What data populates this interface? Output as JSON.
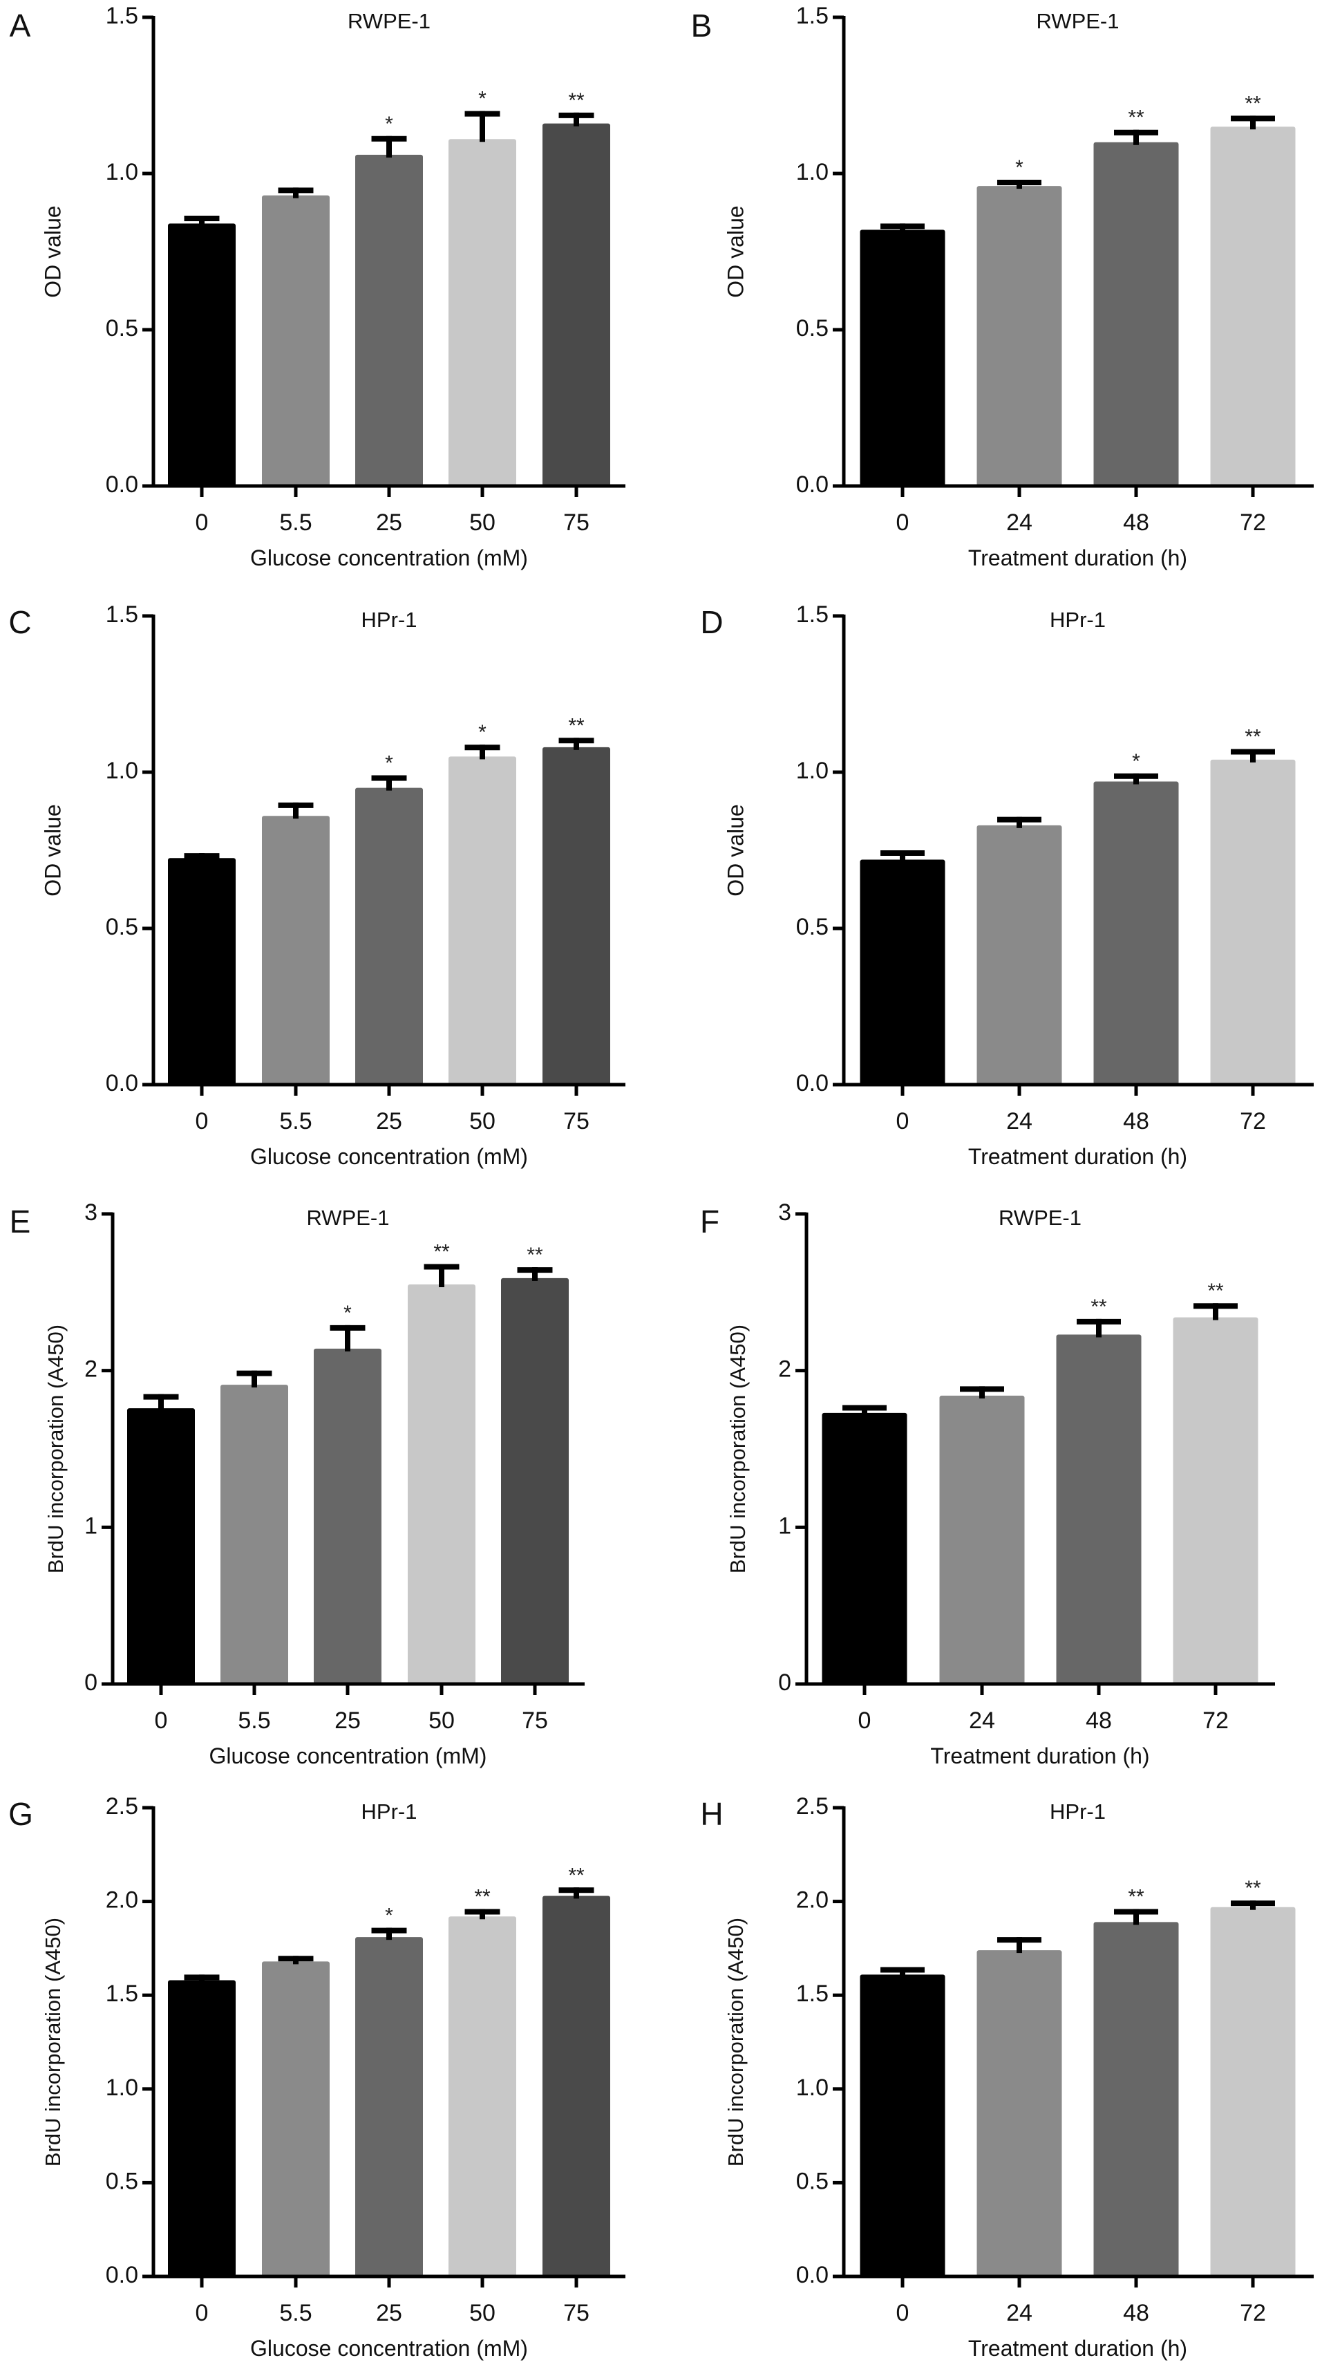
{
  "colors": {
    "bars": [
      "#000000",
      "#8a8a8a",
      "#676767",
      "#c8c8c8",
      "#4a4a4a"
    ],
    "axis": "#000000",
    "error_bar": "#000000"
  },
  "chart_data": [
    {
      "panel": "A",
      "type": "bar",
      "title": "RWPE-1",
      "xlabel": "Glucose concentration (mM)",
      "ylabel": "OD value",
      "categories": [
        "0",
        "5.5",
        "25",
        "50",
        "75"
      ],
      "values": [
        0.84,
        0.93,
        1.06,
        1.11,
        1.16
      ],
      "errors": [
        0.025,
        0.025,
        0.06,
        0.09,
        0.035
      ],
      "significance": [
        "",
        "",
        "*",
        "*",
        "**"
      ],
      "ylim": [
        0,
        1.5
      ],
      "yticks": [
        0,
        0.5,
        1.0,
        1.5
      ],
      "ytick_labels": [
        "0.0",
        "0.5",
        "1.0",
        "1.5"
      ],
      "grid": false
    },
    {
      "panel": "B",
      "type": "bar",
      "title": "RWPE-1",
      "xlabel": "Treatment duration (h)",
      "ylabel": "OD value",
      "categories": [
        "0",
        "24",
        "48",
        "72"
      ],
      "values": [
        0.82,
        0.96,
        1.1,
        1.15
      ],
      "errors": [
        0.02,
        0.02,
        0.04,
        0.035
      ],
      "significance": [
        "",
        "*",
        "**",
        "**"
      ],
      "ylim": [
        0,
        1.5
      ],
      "yticks": [
        0,
        0.5,
        1.0,
        1.5
      ],
      "ytick_labels": [
        "0.0",
        "0.5",
        "1.0",
        "1.5"
      ],
      "grid": false
    },
    {
      "panel": "C",
      "type": "bar",
      "title": "HPr-1",
      "xlabel": "Glucose concentration (mM)",
      "ylabel": "OD value",
      "categories": [
        "0",
        "5.5",
        "25",
        "50",
        "75"
      ],
      "values": [
        0.725,
        0.86,
        0.95,
        1.05,
        1.08
      ],
      "errors": [
        0.016,
        0.043,
        0.04,
        0.038,
        0.03
      ],
      "significance": [
        "",
        "",
        "*",
        "*",
        "**"
      ],
      "ylim": [
        0,
        1.5
      ],
      "yticks": [
        0,
        0.5,
        1.0,
        1.5
      ],
      "ytick_labels": [
        "0.0",
        "0.5",
        "1.0",
        "1.5"
      ],
      "grid": false
    },
    {
      "panel": "D",
      "type": "bar",
      "title": "HPr-1",
      "xlabel": "Treatment duration (h)",
      "ylabel": "OD value",
      "categories": [
        "0",
        "24",
        "48",
        "72"
      ],
      "values": [
        0.72,
        0.83,
        0.97,
        1.04
      ],
      "errors": [
        0.03,
        0.027,
        0.026,
        0.034
      ],
      "significance": [
        "",
        "",
        "*",
        "**"
      ],
      "ylim": [
        0,
        1.5
      ],
      "yticks": [
        0,
        0.5,
        1.0,
        1.5
      ],
      "ytick_labels": [
        "0.0",
        "0.5",
        "1.0",
        "1.5"
      ],
      "grid": false
    },
    {
      "panel": "E",
      "type": "bar",
      "title": "RWPE-1",
      "xlabel": "Glucose concentration (mM)",
      "ylabel": "BrdU incorporation (A450)",
      "categories": [
        "0",
        "5.5",
        "25",
        "50",
        "75"
      ],
      "values": [
        1.76,
        1.91,
        2.14,
        2.55,
        2.59
      ],
      "errors": [
        0.09,
        0.09,
        0.15,
        0.13,
        0.07
      ],
      "significance": [
        "",
        "",
        "*",
        "**",
        "**"
      ],
      "ylim": [
        0,
        3
      ],
      "yticks": [
        0,
        1,
        2,
        3
      ],
      "ytick_labels": [
        "0",
        "1",
        "2",
        "3"
      ],
      "grid": false
    },
    {
      "panel": "F",
      "type": "bar",
      "title": "RWPE-1",
      "xlabel": "Treatment duration (h)",
      "ylabel": "BrdU incorporation (A450)",
      "categories": [
        "0",
        "24",
        "48",
        "72"
      ],
      "values": [
        1.73,
        1.84,
        2.23,
        2.34
      ],
      "errors": [
        0.05,
        0.06,
        0.1,
        0.09
      ],
      "significance": [
        "",
        "",
        "**",
        "**"
      ],
      "ylim": [
        0,
        3
      ],
      "yticks": [
        0,
        1,
        2,
        3
      ],
      "ytick_labels": [
        "0",
        "1",
        "2",
        "3"
      ],
      "grid": false
    },
    {
      "panel": "G",
      "type": "bar",
      "title": "HPr-1",
      "xlabel": "Glucose concentration (mM)",
      "ylabel": "BrdU incorporation (A450)",
      "categories": [
        "0",
        "5.5",
        "25",
        "50",
        "75"
      ],
      "values": [
        1.58,
        1.68,
        1.81,
        1.92,
        2.03
      ],
      "errors": [
        0.03,
        0.03,
        0.05,
        0.04,
        0.045
      ],
      "significance": [
        "",
        "",
        "*",
        "**",
        "**"
      ],
      "ylim": [
        0,
        2.5
      ],
      "yticks": [
        0,
        0.5,
        1.0,
        1.5,
        2.0,
        2.5
      ],
      "ytick_labels": [
        "0.0",
        "0.5",
        "1.0",
        "1.5",
        "2.0",
        "2.5"
      ],
      "grid": false
    },
    {
      "panel": "H",
      "type": "bar",
      "title": "HPr-1",
      "xlabel": "Treatment duration (h)",
      "ylabel": "BrdU incorporation (A450)",
      "categories": [
        "0",
        "24",
        "48",
        "72"
      ],
      "values": [
        1.61,
        1.74,
        1.89,
        1.97
      ],
      "errors": [
        0.04,
        0.07,
        0.07,
        0.035
      ],
      "significance": [
        "",
        "",
        "**",
        "**"
      ],
      "ylim": [
        0,
        2.5
      ],
      "yticks": [
        0,
        0.5,
        1.0,
        1.5,
        2.0,
        2.5
      ],
      "ytick_labels": [
        "0.0",
        "0.5",
        "1.0",
        "1.5",
        "2.0",
        "2.5"
      ],
      "grid": false
    }
  ]
}
